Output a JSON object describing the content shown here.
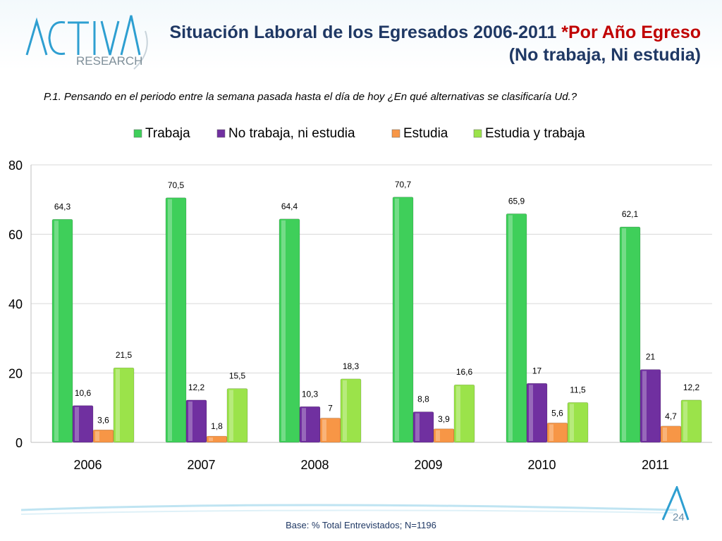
{
  "header": {
    "logo_text_top": "ACTIVA",
    "logo_text_bottom": "RESEARCH",
    "title_line1_a": "Situación Laboral de los Egresados 2006-2011 ",
    "title_line1_b": "*Por Año Egreso",
    "title_line2": "(No trabaja, Ni estudia)"
  },
  "question": "P.1.  Pensando en el periodo entre la semana pasada hasta el día de hoy ¿En qué alternativas se clasificaría Ud.?",
  "footer": {
    "base": "Base: % Total Entrevistados; N=1196",
    "page_number": "24"
  },
  "chart_data": {
    "type": "bar",
    "categories": [
      "2006",
      "2007",
      "2008",
      "2009",
      "2010",
      "2011"
    ],
    "series": [
      {
        "name": "Trabaja",
        "color": "#3fcf5a",
        "values": [
          64.3,
          70.5,
          64.4,
          70.7,
          65.9,
          62.1
        ],
        "labels": [
          "64,3",
          "70,5",
          "64,4",
          "70,7",
          "65,9",
          "62,1"
        ]
      },
      {
        "name": "No trabaja, ni estudia",
        "color": "#7030a0",
        "values": [
          10.6,
          12.2,
          10.3,
          8.8,
          17,
          21
        ],
        "labels": [
          "10,6",
          "12,2",
          "10,3",
          "8,8",
          "17",
          "21"
        ]
      },
      {
        "name": "Estudia",
        "color": "#f79646",
        "values": [
          3.6,
          1.8,
          7,
          3.9,
          5.6,
          4.7
        ],
        "labels": [
          "3,6",
          "1,8",
          "7",
          "3,9",
          "5,6",
          "4,7"
        ]
      },
      {
        "name": "Estudia y trabaja",
        "color": "#9be34a",
        "values": [
          21.5,
          15.5,
          18.3,
          16.6,
          11.5,
          12.2
        ],
        "labels": [
          "21,5",
          "15,5",
          "18,3",
          "16,6",
          "11,5",
          "12,2"
        ]
      }
    ],
    "yticks": [
      "0",
      "20",
      "40",
      "60",
      "80"
    ],
    "ylim": [
      0,
      80
    ],
    "grid": true,
    "legend_position": "top"
  }
}
